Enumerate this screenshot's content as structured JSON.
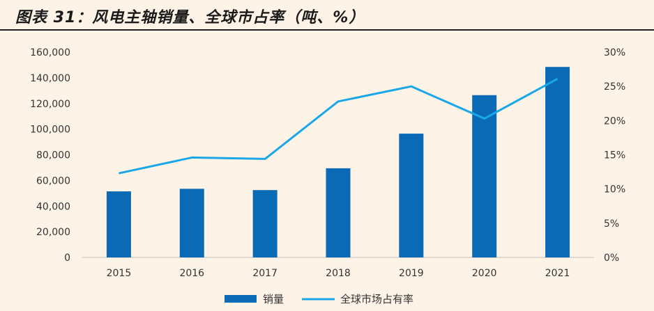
{
  "page": {
    "title": "图表 31：风电主轴销量、全球市占率（吨、%）"
  },
  "colors": {
    "bar": "#0b6ab6",
    "line": "#1aa7e8",
    "axis": "#bfbfbf",
    "background": "#fdf3e6"
  },
  "chart_data": {
    "type": "bar",
    "categories": [
      "2015",
      "2016",
      "2017",
      "2018",
      "2019",
      "2020",
      "2021"
    ],
    "series": [
      {
        "name": "销量",
        "type": "bar",
        "axis": "left",
        "values": [
          51500,
          53500,
          52500,
          69500,
          96500,
          126500,
          148500
        ]
      },
      {
        "name": "全球市场占有率",
        "type": "line",
        "axis": "right",
        "values": [
          12.3,
          14.6,
          14.4,
          22.8,
          25.0,
          20.3,
          26.1
        ]
      }
    ],
    "y_left": {
      "min": 0,
      "max": 160000,
      "ticks": [
        "0",
        "20,000",
        "40,000",
        "60,000",
        "80,000",
        "100,000",
        "120,000",
        "140,000",
        "160,000"
      ]
    },
    "y_right": {
      "min": 0,
      "max": 30,
      "ticks": [
        "0%",
        "5%",
        "10%",
        "15%",
        "20%",
        "25%",
        "30%"
      ]
    },
    "legend": {
      "position": "bottom",
      "labels": [
        "销量",
        "全球市场占有率"
      ]
    }
  }
}
